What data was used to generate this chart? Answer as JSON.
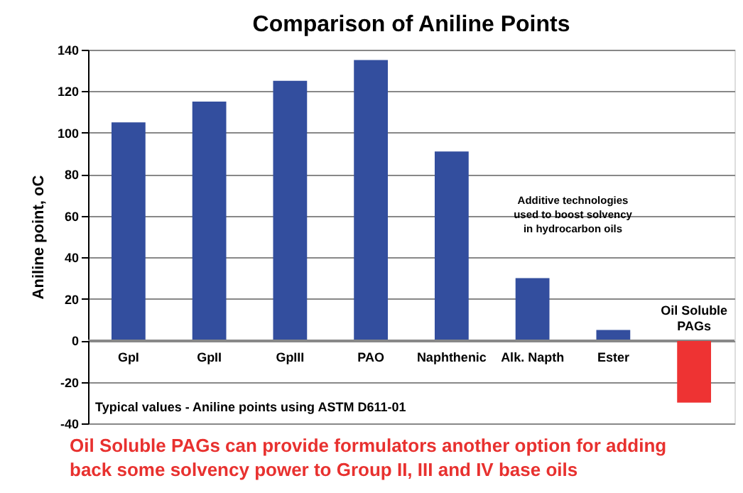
{
  "chart_data": {
    "type": "bar",
    "title": "Comparison of Aniline Points",
    "ylabel": "Aniline point, oC",
    "categories": [
      "GpI",
      "GpII",
      "GpIII",
      "PAO",
      "Naphthenic",
      "Alk. Napth",
      "Ester",
      "Oil Soluble PAGs"
    ],
    "values": [
      105,
      115,
      125,
      135,
      91,
      30,
      5,
      -30
    ],
    "colors": [
      "#334e9e",
      "#334e9e",
      "#334e9e",
      "#334e9e",
      "#334e9e",
      "#334e9e",
      "#334e9e",
      "#ee3333"
    ],
    "ylim": [
      -40,
      140
    ],
    "yticks": [
      -40,
      -20,
      0,
      20,
      40,
      60,
      80,
      100,
      120,
      140
    ],
    "grid": "y",
    "annotations": [
      "Additive technologies used to boost solvency in hydrocarbon oils",
      "Typical values  - Aniline points using ASTM D611-01",
      "Oil Soluble PAGs can provide formulators another option for adding back some solvency power to Group II, III and IV base oils"
    ]
  }
}
